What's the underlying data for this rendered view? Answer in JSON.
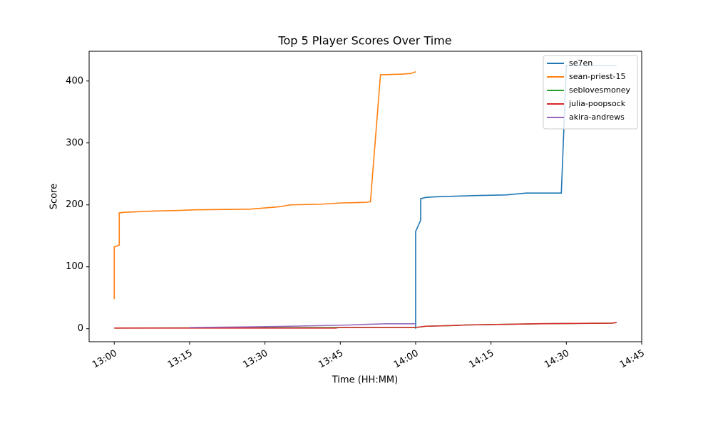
{
  "chart_data": {
    "type": "line",
    "title": "Top 5 Player Scores Over Time",
    "x_label": "Time (HH:MM)",
    "y_label": "Score",
    "xlim": [
      "12:55",
      "14:45"
    ],
    "ylim": [
      -21,
      448
    ],
    "xticks": [
      "13:00",
      "13:15",
      "13:30",
      "13:45",
      "14:00",
      "14:15",
      "14:30",
      "14:45"
    ],
    "yticks": [
      0,
      100,
      200,
      300,
      400
    ],
    "legend": "upper right",
    "series": [
      {
        "name": "se7en",
        "color": "#1f77b4",
        "x": [
          "14:00",
          "14:00",
          "14:01",
          "14:01",
          "14:02",
          "14:04",
          "14:08",
          "14:12",
          "14:18",
          "14:22",
          "14:29",
          "14:30",
          "14:40"
        ],
        "values": [
          0,
          157,
          175,
          210,
          212,
          213,
          214,
          215,
          216,
          219,
          219,
          425,
          425
        ]
      },
      {
        "name": "sean-priest-15",
        "color": "#ff7f0e",
        "x": [
          "13:00",
          "13:00",
          "13:01",
          "13:01",
          "13:02",
          "13:05",
          "13:08",
          "13:13",
          "13:16",
          "13:27",
          "13:30",
          "13:33",
          "13:35",
          "13:41",
          "13:45",
          "13:50",
          "13:51",
          "13:53",
          "13:57",
          "13:59",
          "14:00"
        ],
        "values": [
          48,
          132,
          135,
          187,
          188,
          189,
          190,
          191,
          192,
          193,
          195,
          197,
          200,
          201,
          203,
          204,
          205,
          410,
          411,
          412,
          415
        ]
      },
      {
        "name": "seblovesmoney",
        "color": "#2ca02c",
        "x": [
          "13:00",
          "13:45",
          "14:00",
          "14:01",
          "14:02",
          "14:07",
          "14:10",
          "14:24",
          "14:39",
          "14:40"
        ],
        "values": [
          1,
          2,
          2,
          3,
          4,
          5,
          6,
          8,
          9,
          10
        ]
      },
      {
        "name": "julia-poopsock",
        "color": "#d62728",
        "x": [
          "13:00",
          "13:44",
          "13:45",
          "14:00",
          "14:01",
          "14:02",
          "14:07",
          "14:10",
          "14:24",
          "14:39",
          "14:40"
        ],
        "values": [
          1,
          1,
          2,
          2,
          3,
          4,
          5,
          6,
          8,
          9,
          10
        ]
      },
      {
        "name": "akira-andrews",
        "color": "#9467bd",
        "x": [
          "13:15",
          "13:27",
          "13:35",
          "13:47",
          "13:50",
          "13:54",
          "14:00"
        ],
        "values": [
          2,
          3,
          4,
          6,
          7,
          8,
          8
        ]
      }
    ]
  }
}
